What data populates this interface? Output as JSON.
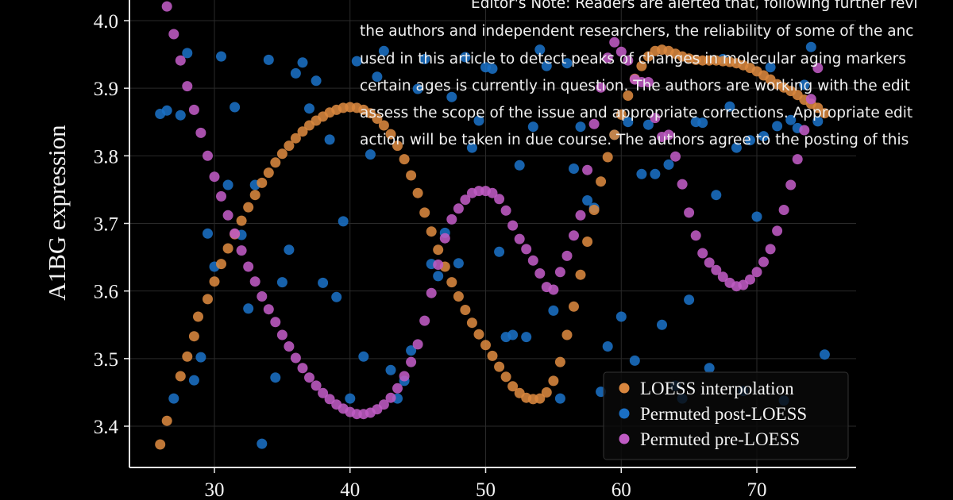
{
  "colors": {
    "background": "#000000",
    "grid": "#2a2a2a",
    "axis": "#e8e8e8",
    "loess": "#d9873f",
    "post": "#1a6fc4",
    "pre": "#bf5bc4",
    "note_text": "#f0f0f0"
  },
  "overlay_note": {
    "lines": [
      "Editor's Note: Readers are alerted that, following further revi",
      "the authors and independent researchers, the reliability of some of the anc",
      "used in this article to detect peaks of changes in molecular aging markers",
      "certain ages is currently in question. The authors are working with the edit",
      "assess the scope of the issue and appropriate corrections. Appropriate edit",
      "action will be taken in due course. The authors agree to the posting of this"
    ]
  },
  "chart_data": {
    "type": "scatter",
    "xlabel": "",
    "ylabel": "A1BG expression",
    "xlim": [
      24,
      77
    ],
    "ylim": [
      3.34,
      4.03
    ],
    "x_ticks": [
      30,
      40,
      50,
      60,
      70
    ],
    "y_ticks": [
      3.4,
      3.5,
      3.6,
      3.7,
      3.8,
      3.9,
      4.0
    ],
    "x_tick_labels": [
      "30",
      "40",
      "50",
      "60",
      "70"
    ],
    "y_tick_labels": [
      "3.4",
      "3.5",
      "3.6",
      "3.7",
      "3.8",
      "3.9",
      "4.0"
    ],
    "grid": true,
    "legend_position": "bottom-right",
    "series": [
      {
        "name": "LOESS interpolation",
        "color": "#d9873f",
        "x": [
          26.0,
          26.5,
          27.5,
          28.0,
          28.5,
          28.8,
          29.5,
          30.0,
          30.5,
          31.0,
          31.5,
          32.0,
          32.5,
          33.0,
          33.5,
          34.0,
          34.5,
          35.0,
          35.5,
          36.0,
          36.5,
          37.0,
          37.5,
          38.0,
          38.5,
          39.0,
          39.5,
          40.0,
          40.5,
          41.0,
          41.5,
          42.0,
          42.5,
          43.0,
          43.5,
          44.0,
          44.5,
          45.0,
          45.5,
          46.0,
          46.5,
          47.0,
          47.5,
          48.0,
          48.5,
          49.0,
          49.5,
          50.0,
          50.5,
          51.0,
          51.5,
          52.0,
          52.5,
          53.0,
          53.5,
          54.0,
          54.5,
          55.0,
          55.5,
          56.0,
          56.5,
          57.0,
          57.5,
          58.0,
          58.5,
          59.0,
          59.5,
          60.0,
          60.5,
          61.0,
          61.5,
          62.0,
          62.5,
          63.0,
          63.5,
          64.0,
          64.5,
          65.0,
          65.5,
          66.0,
          66.5,
          67.0,
          67.5,
          68.0,
          68.5,
          69.0,
          69.5,
          70.0,
          70.5,
          71.0,
          71.5,
          72.0,
          72.5,
          73.0,
          73.5,
          74.0,
          74.5,
          75.0
        ],
        "y": [
          3.373,
          3.408,
          3.474,
          3.503,
          3.533,
          3.562,
          3.588,
          3.614,
          3.64,
          3.663,
          3.684,
          3.704,
          3.724,
          3.742,
          3.76,
          3.775,
          3.79,
          3.803,
          3.815,
          3.826,
          3.836,
          3.845,
          3.852,
          3.858,
          3.864,
          3.868,
          3.871,
          3.872,
          3.871,
          3.868,
          3.863,
          3.855,
          3.845,
          3.832,
          3.815,
          3.795,
          3.771,
          3.745,
          3.716,
          3.688,
          3.661,
          3.636,
          3.613,
          3.592,
          3.572,
          3.553,
          3.536,
          3.52,
          3.504,
          3.488,
          3.473,
          3.459,
          3.449,
          3.442,
          3.44,
          3.441,
          3.45,
          3.467,
          3.495,
          3.535,
          3.577,
          3.624,
          3.673,
          3.72,
          3.762,
          3.798,
          3.831,
          3.861,
          3.889,
          3.914,
          3.933,
          3.947,
          3.955,
          3.957,
          3.955,
          3.951,
          3.947,
          3.944,
          3.942,
          3.941,
          3.941,
          3.941,
          3.94,
          3.939,
          3.937,
          3.934,
          3.93,
          3.925,
          3.919,
          3.913,
          3.906,
          3.901,
          3.896,
          3.89,
          3.883,
          3.877,
          3.871,
          3.863
        ]
      },
      {
        "name": "Permuted post-LOESS",
        "color": "#1a6fc4",
        "x": [
          26.0,
          26.5,
          27.0,
          27.5,
          28.0,
          28.5,
          29.0,
          29.5,
          30.0,
          30.5,
          31.0,
          31.5,
          32.0,
          32.5,
          33.0,
          33.5,
          34.0,
          34.5,
          35.0,
          35.5,
          36.0,
          36.5,
          37.0,
          37.5,
          38.0,
          38.5,
          39.0,
          39.5,
          40.0,
          40.5,
          41.0,
          41.5,
          42.0,
          42.5,
          43.0,
          43.5,
          44.0,
          44.5,
          45.0,
          45.5,
          46.0,
          46.5,
          47.0,
          47.5,
          48.0,
          48.5,
          49.0,
          49.5,
          50.0,
          50.5,
          51.0,
          51.5,
          52.0,
          52.5,
          53.0,
          53.5,
          54.0,
          54.5,
          55.0,
          55.5,
          56.0,
          56.5,
          57.0,
          57.5,
          58.0,
          58.5,
          59.0,
          59.5,
          60.0,
          60.5,
          61.0,
          61.5,
          62.0,
          62.5,
          63.0,
          63.5,
          64.0,
          64.5,
          65.0,
          65.5,
          66.0,
          66.5,
          67.0,
          67.5,
          68.0,
          68.5,
          69.0,
          69.5,
          70.0,
          70.5,
          71.0,
          71.5,
          72.0,
          72.5,
          73.0,
          73.5,
          74.0,
          74.5,
          75.0
        ],
        "y": [
          3.862,
          3.867,
          3.441,
          3.86,
          3.952,
          3.468,
          3.502,
          3.685,
          3.636,
          3.947,
          3.757,
          3.872,
          3.683,
          3.574,
          3.757,
          3.374,
          3.942,
          3.472,
          3.613,
          3.661,
          3.922,
          3.938,
          3.87,
          3.911,
          3.612,
          3.824,
          3.591,
          3.703,
          3.441,
          3.94,
          3.503,
          3.802,
          3.917,
          3.955,
          3.483,
          3.441,
          3.467,
          3.512,
          3.899,
          3.943,
          3.64,
          3.622,
          3.686,
          3.887,
          3.641,
          3.946,
          3.812,
          3.852,
          3.931,
          3.929,
          3.658,
          3.532,
          3.535,
          3.786,
          3.532,
          3.843,
          3.957,
          3.933,
          3.571,
          3.441,
          3.937,
          3.781,
          3.843,
          3.734,
          3.723,
          3.451,
          3.518,
          3.831,
          3.562,
          3.85,
          3.497,
          3.773,
          3.846,
          3.773,
          3.55,
          3.787,
          3.46,
          3.441,
          3.587,
          3.85,
          3.849,
          3.486,
          3.742,
          3.943,
          3.873,
          3.812,
          3.452,
          3.823,
          3.71,
          3.829,
          3.931,
          3.844,
          3.438,
          3.853,
          3.841,
          3.905,
          3.961,
          3.851,
          3.506
        ]
      },
      {
        "name": "Permuted pre-LOESS",
        "color": "#bf5bc4",
        "x": [
          26.5,
          27.0,
          27.5,
          28.0,
          28.5,
          29.0,
          29.5,
          30.0,
          30.5,
          31.0,
          31.5,
          32.0,
          32.5,
          33.0,
          33.5,
          34.0,
          34.5,
          35.0,
          35.5,
          36.0,
          36.5,
          37.0,
          37.5,
          38.0,
          38.5,
          39.0,
          39.5,
          40.0,
          40.5,
          41.0,
          41.5,
          42.0,
          42.5,
          43.0,
          43.5,
          44.0,
          44.5,
          45.0,
          45.5,
          46.0,
          46.5,
          47.0,
          47.5,
          48.0,
          48.5,
          49.0,
          49.5,
          50.0,
          50.5,
          51.0,
          51.5,
          52.0,
          52.5,
          53.0,
          53.5,
          54.0,
          54.5,
          55.0,
          55.5,
          56.0,
          56.5,
          57.0,
          57.5,
          58.0,
          58.5,
          59.0,
          59.5,
          60.0,
          60.5,
          61.0,
          61.5,
          62.0,
          62.5,
          63.0,
          63.5,
          64.0,
          64.5,
          65.0,
          65.5,
          66.0,
          66.5,
          67.0,
          67.5,
          68.0,
          68.5,
          69.0,
          69.5,
          70.0,
          70.5,
          71.0,
          71.5,
          72.0,
          72.5,
          73.0,
          73.5,
          74.0,
          74.5
        ],
        "y": [
          4.021,
          3.98,
          3.941,
          3.903,
          3.868,
          3.834,
          3.8,
          3.769,
          3.74,
          3.712,
          3.685,
          3.66,
          3.636,
          3.614,
          3.592,
          3.573,
          3.554,
          3.535,
          3.518,
          3.501,
          3.486,
          3.472,
          3.46,
          3.449,
          3.44,
          3.432,
          3.426,
          3.421,
          3.418,
          3.418,
          3.42,
          3.425,
          3.432,
          3.442,
          3.456,
          3.474,
          3.495,
          3.521,
          3.556,
          3.597,
          3.639,
          3.678,
          3.706,
          3.722,
          3.735,
          3.745,
          3.748,
          3.748,
          3.745,
          3.736,
          3.719,
          3.697,
          3.677,
          3.662,
          3.645,
          3.626,
          3.606,
          3.602,
          3.628,
          3.652,
          3.682,
          3.712,
          3.779,
          3.847,
          3.901,
          3.945,
          3.968,
          3.954,
          3.941,
          3.913,
          3.909,
          3.909,
          3.856,
          3.828,
          3.831,
          3.799,
          3.758,
          3.716,
          3.682,
          3.656,
          3.642,
          3.631,
          3.621,
          3.612,
          3.607,
          3.609,
          3.617,
          3.628,
          3.643,
          3.662,
          3.689,
          3.72,
          3.757,
          3.795,
          3.838,
          3.884,
          3.93
        ]
      }
    ]
  }
}
